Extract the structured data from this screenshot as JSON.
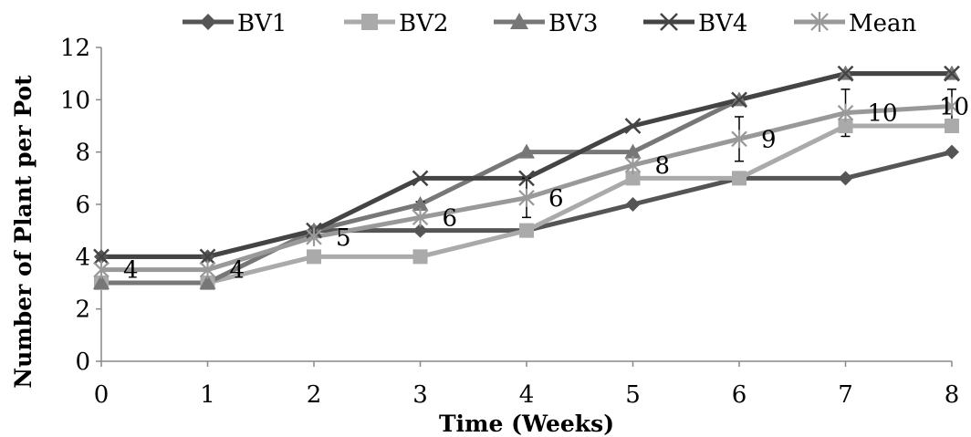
{
  "chart_data": {
    "type": "line",
    "title": "",
    "xlabel": "Time (Weeks)",
    "ylabel": "Number of Plant per Pot",
    "x": [
      0,
      1,
      2,
      3,
      4,
      5,
      6,
      7,
      8
    ],
    "xticks": [
      "0",
      "1",
      "2",
      "3",
      "4",
      "5",
      "6",
      "7",
      "8"
    ],
    "yticks": [
      "0",
      "2",
      "4",
      "6",
      "8",
      "10",
      "12"
    ],
    "xlim": [
      0,
      8
    ],
    "ylim": [
      0,
      12
    ],
    "grid": false,
    "legend_position": "top",
    "series": [
      {
        "name": "BV1",
        "values": [
          4,
          4,
          5,
          5,
          5,
          6,
          7,
          7,
          8
        ],
        "color": "#555555",
        "marker": "diamond"
      },
      {
        "name": "BV2",
        "values": [
          3,
          3,
          4,
          4,
          5,
          7,
          7,
          9,
          9
        ],
        "color": "#AAAAAA",
        "marker": "square"
      },
      {
        "name": "BV3",
        "values": [
          3,
          3,
          5,
          6,
          8,
          8,
          10,
          11,
          11
        ],
        "color": "#777777",
        "marker": "triangle"
      },
      {
        "name": "BV4",
        "values": [
          4,
          4,
          5,
          7,
          7,
          9,
          10,
          11,
          11
        ],
        "color": "#444444",
        "marker": "x"
      },
      {
        "name": "Mean",
        "values": [
          3.5,
          3.5,
          4.75,
          5.5,
          6.25,
          7.5,
          8.5,
          9.5,
          9.75
        ],
        "color": "#999999",
        "marker": "star",
        "error": [
          0,
          0,
          0,
          0.6,
          0.75,
          0.5,
          0.85,
          0.9,
          0.65
        ]
      }
    ],
    "data_labels": [
      {
        "x": 0,
        "y": 3.5,
        "text": "4"
      },
      {
        "x": 1,
        "y": 3.5,
        "text": "4"
      },
      {
        "x": 2,
        "y": 4.75,
        "text": "5"
      },
      {
        "x": 3,
        "y": 5.5,
        "text": "6"
      },
      {
        "x": 4,
        "y": 6.25,
        "text": "6"
      },
      {
        "x": 5,
        "y": 7.5,
        "text": "8"
      },
      {
        "x": 6,
        "y": 8.5,
        "text": "9"
      },
      {
        "x": 7,
        "y": 9.5,
        "text": "10"
      },
      {
        "x": 8,
        "y": 9.75,
        "text": "10"
      }
    ]
  }
}
